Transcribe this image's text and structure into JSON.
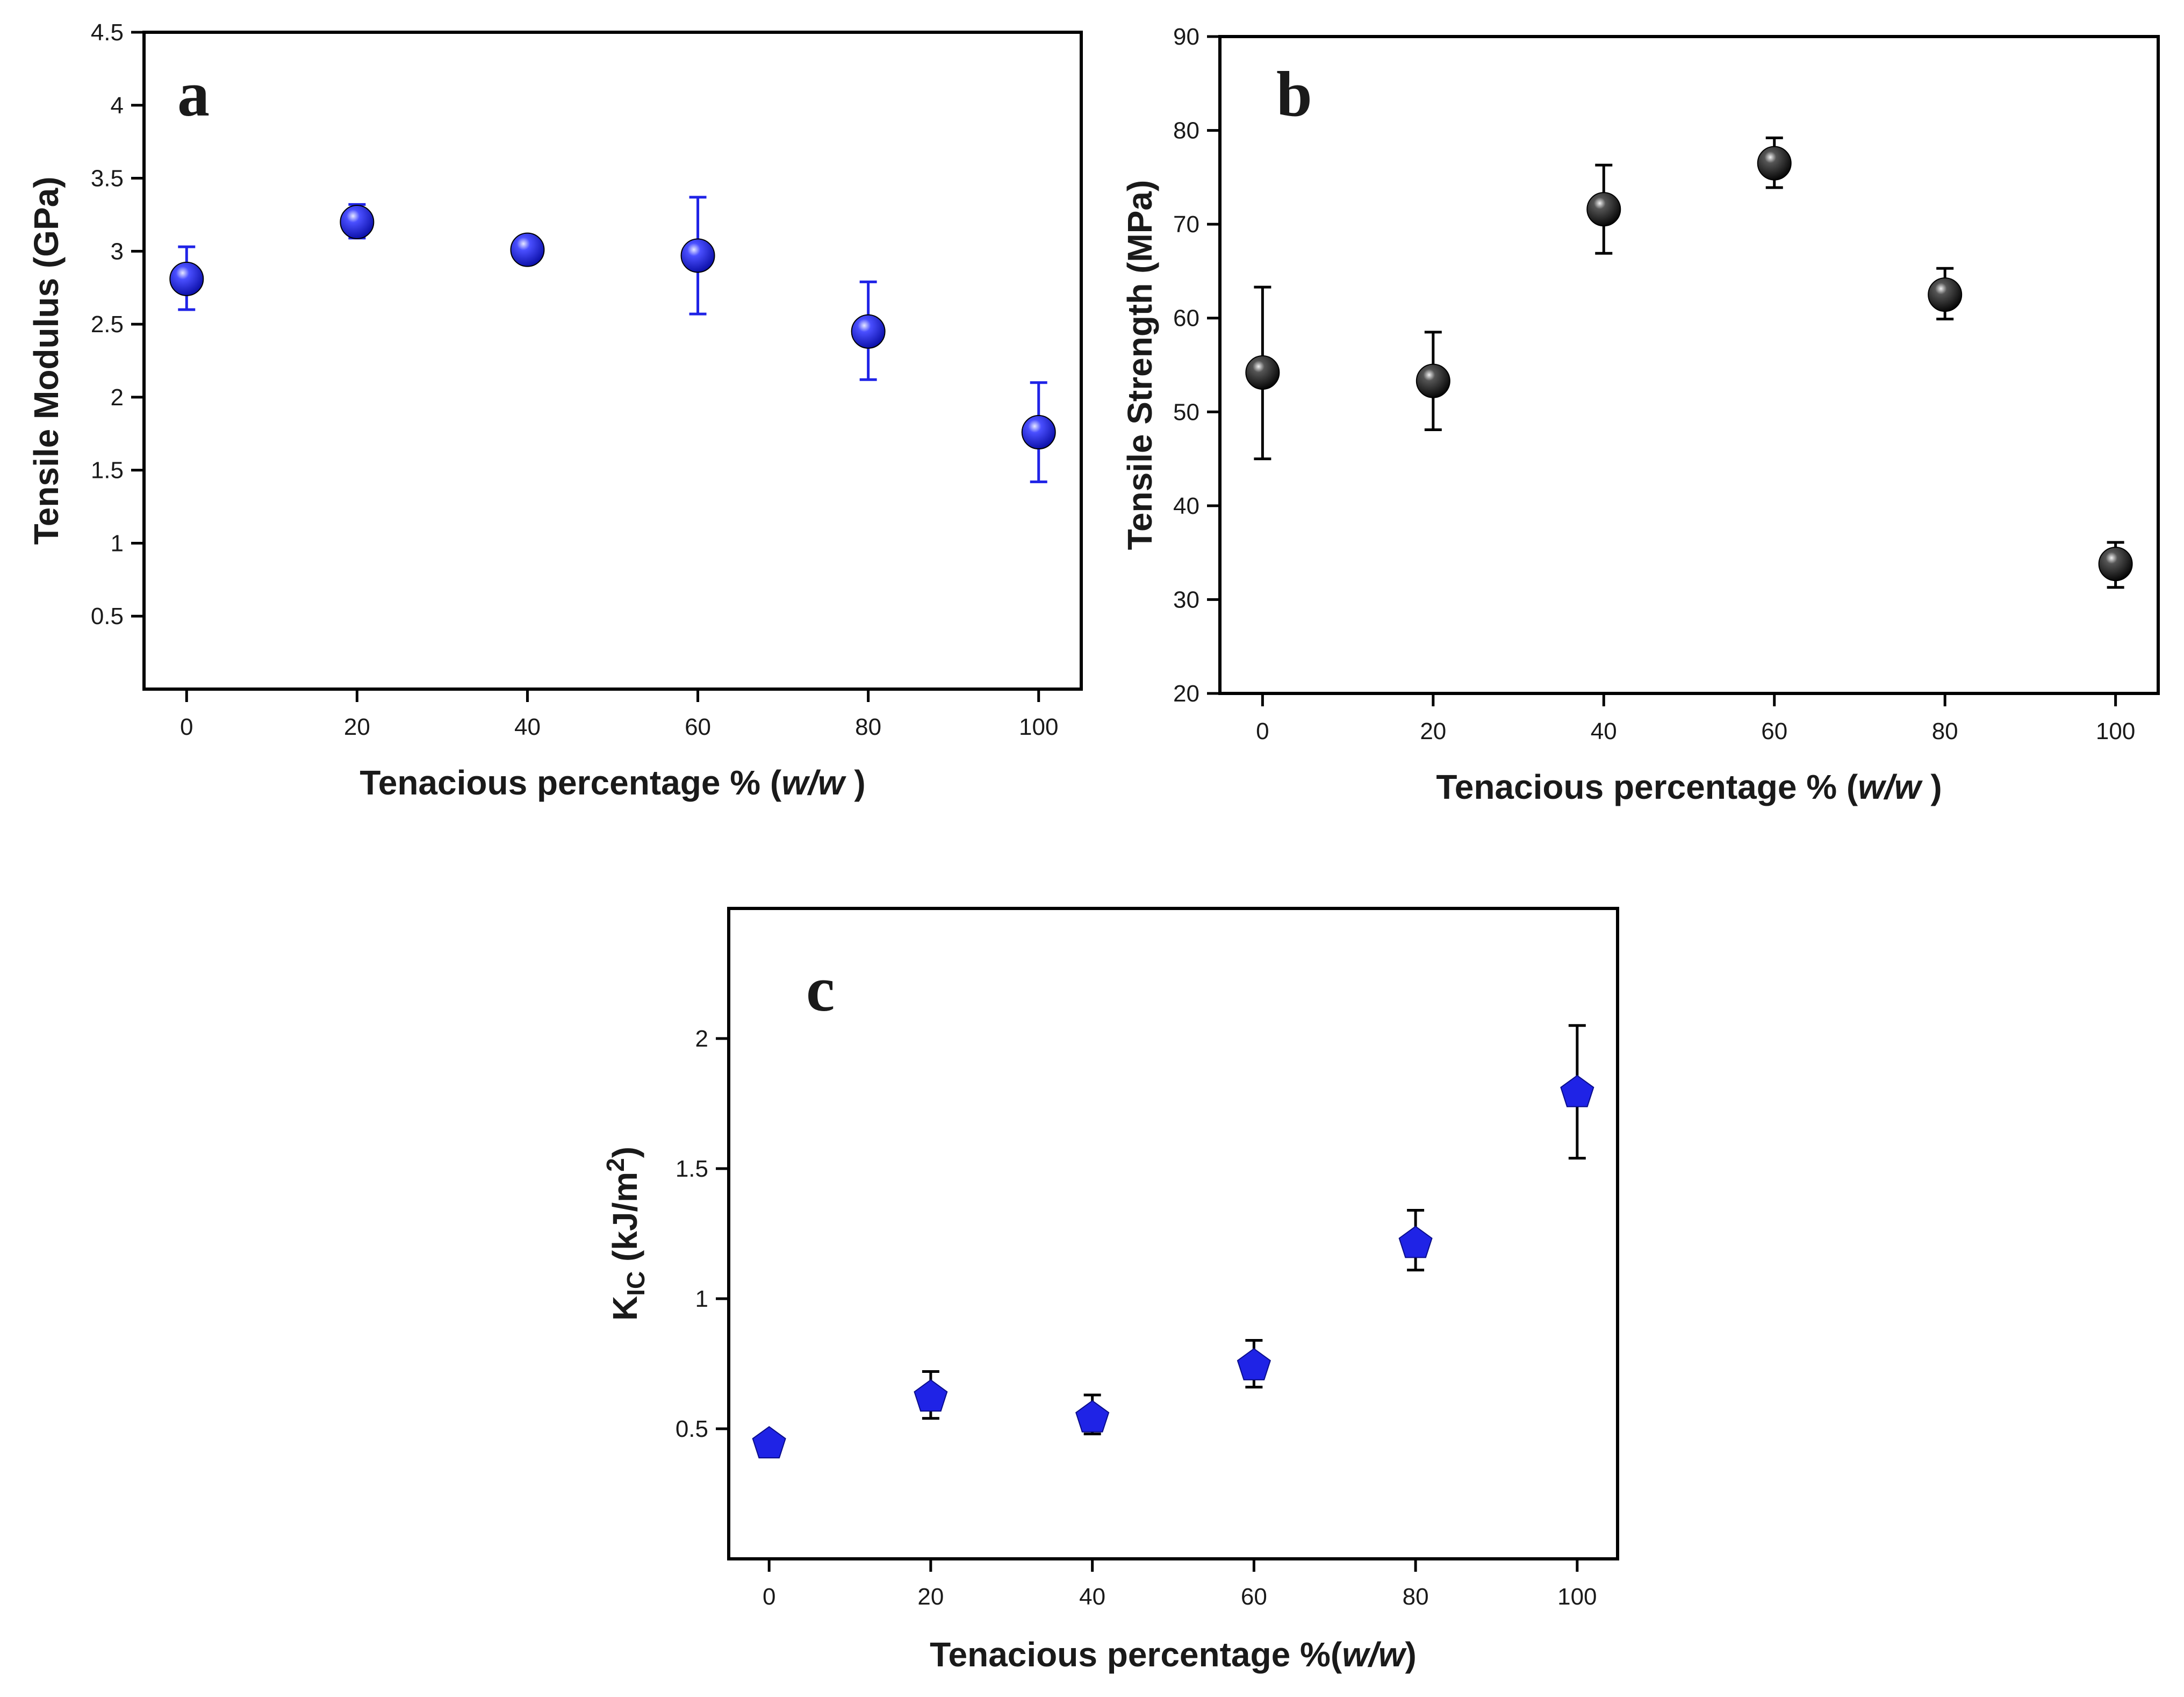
{
  "chart_data": [
    {
      "panel": "a",
      "type": "scatter",
      "xlabel": "Tenacious percentage % (",
      "xlabel_italic": "w/w",
      "xlabel_end": " )",
      "ylabel": "Tensile Modulus (GPa)",
      "x": [
        0,
        20,
        40,
        60,
        80,
        100
      ],
      "y": [
        2.81,
        3.2,
        3.01,
        2.97,
        2.45,
        1.76
      ],
      "yerr_low": [
        2.6,
        3.09,
        2.92,
        2.57,
        2.12,
        1.42
      ],
      "yerr_high": [
        3.03,
        3.32,
        3.1,
        3.37,
        2.79,
        2.1
      ],
      "xlim": [
        -5,
        105
      ],
      "ylim": [
        0,
        4.5
      ],
      "xticks": [
        0,
        20,
        40,
        60,
        80,
        100
      ],
      "yticks": [
        0.5,
        1,
        1.5,
        2,
        2.5,
        3,
        3.5,
        4,
        4.5
      ],
      "ytick_labels": [
        "0.5",
        "1",
        "1.5",
        "2",
        "2.5",
        "3",
        "3.5",
        "4",
        "4.5"
      ],
      "marker": "sphere",
      "color": "#1f23e6",
      "errcolor": "#1f23e6"
    },
    {
      "panel": "b",
      "type": "scatter",
      "xlabel": "Tenacious percentage % (",
      "xlabel_italic": "w/w",
      "xlabel_end": " )",
      "ylabel": "Tensile Strength (MPa)",
      "x": [
        0,
        20,
        40,
        60,
        80,
        100
      ],
      "y": [
        54.2,
        53.3,
        71.6,
        76.5,
        62.5,
        33.8
      ],
      "yerr_low": [
        45.0,
        48.1,
        66.9,
        73.9,
        59.9,
        31.3
      ],
      "yerr_high": [
        63.3,
        58.5,
        76.3,
        79.2,
        65.3,
        36.1
      ],
      "xlim": [
        -5,
        105
      ],
      "ylim": [
        20,
        90
      ],
      "xticks": [
        0,
        20,
        40,
        60,
        80,
        100
      ],
      "yticks": [
        20,
        30,
        40,
        50,
        60,
        70,
        80,
        90
      ],
      "ytick_labels": [
        "20",
        "30",
        "40",
        "50",
        "60",
        "70",
        "80",
        "90"
      ],
      "marker": "sphere",
      "color": "#1a1a1a",
      "errcolor": "#000000"
    },
    {
      "panel": "c",
      "type": "scatter",
      "xlabel": "Tenacious percentage %(",
      "xlabel_italic": "w/w",
      "xlabel_end": ")",
      "ylabel": "K",
      "ylabel_sub": "IC",
      "ylabel_rest": " (kJ/m",
      "ylabel_sup": "2",
      "ylabel_end": ")",
      "x": [
        0,
        20,
        40,
        60,
        80,
        100
      ],
      "y": [
        0.45,
        0.63,
        0.55,
        0.75,
        1.22,
        1.8
      ],
      "yerr_low": [
        0.43,
        0.54,
        0.48,
        0.66,
        1.11,
        1.54
      ],
      "yerr_high": [
        0.47,
        0.72,
        0.63,
        0.84,
        1.34,
        2.05
      ],
      "xlim": [
        -5,
        105
      ],
      "ylim": [
        0.0,
        2.5
      ],
      "xticks": [
        0,
        20,
        40,
        60,
        80,
        100
      ],
      "yticks": [
        0.5,
        1,
        1.5,
        2
      ],
      "ytick_labels": [
        "0.5",
        "1",
        "1.5",
        "2"
      ],
      "marker": "pentagon",
      "color": "#1f23e6",
      "errcolor": "#000000"
    }
  ]
}
